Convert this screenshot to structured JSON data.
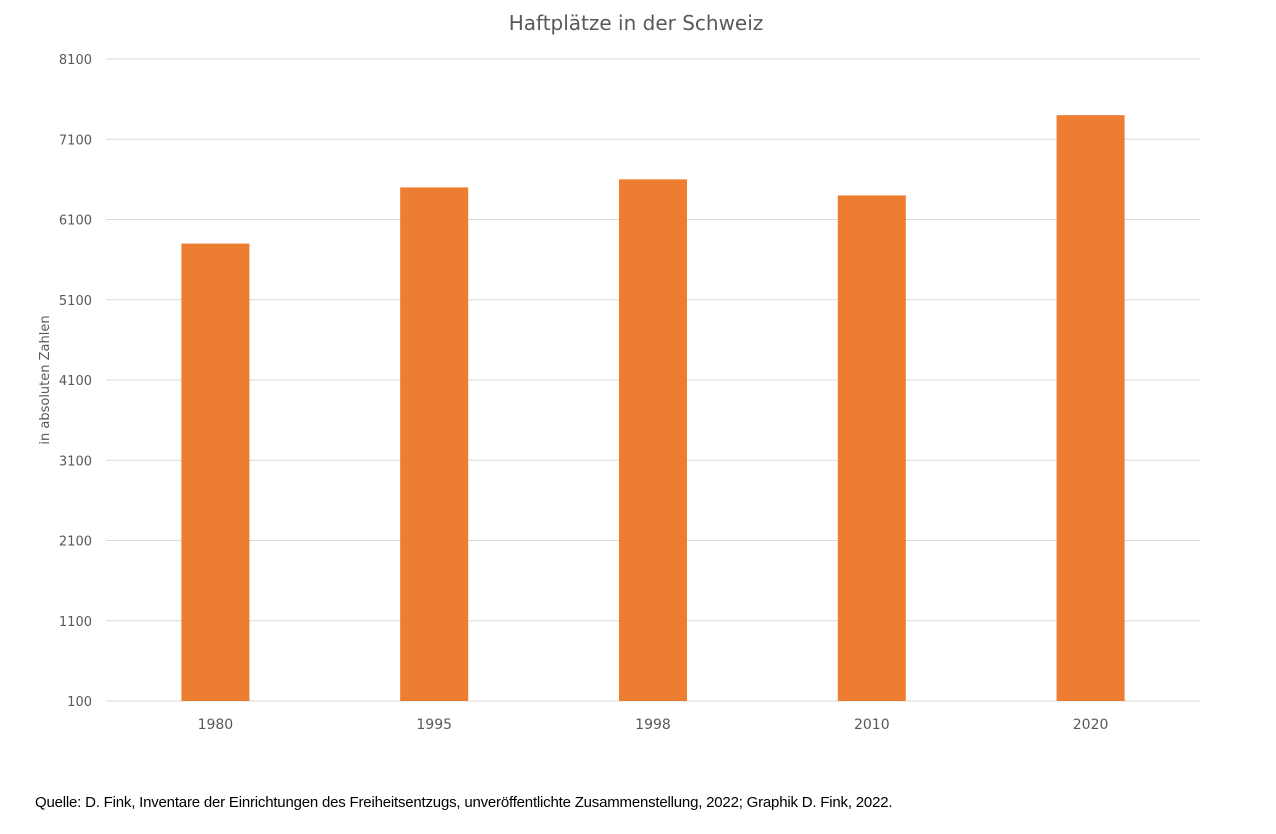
{
  "chart_data": {
    "type": "bar",
    "title": "Haftplätze in der Schweiz",
    "ylabel": "in absoluten Zahlen",
    "xlabel": "",
    "categories": [
      "1980",
      "1995",
      "1998",
      "2010",
      "2020"
    ],
    "values": [
      5800,
      6500,
      6600,
      6400,
      7400
    ],
    "ylim": [
      100,
      8100
    ],
    "yticks": [
      "8100",
      "7100",
      "6100",
      "5100",
      "4100",
      "3100",
      "2100",
      "1100",
      "100"
    ],
    "grid": true,
    "legend": "none",
    "bar_color": "#ED7D31",
    "grid_color": "#D9D9D9"
  },
  "source_note": "Quelle: D. Fink, Inventare der Einrichtungen des Freiheitsentzugs, unveröffentlichte Zusammenstellung, 2022; Graphik D. Fink, 2022."
}
